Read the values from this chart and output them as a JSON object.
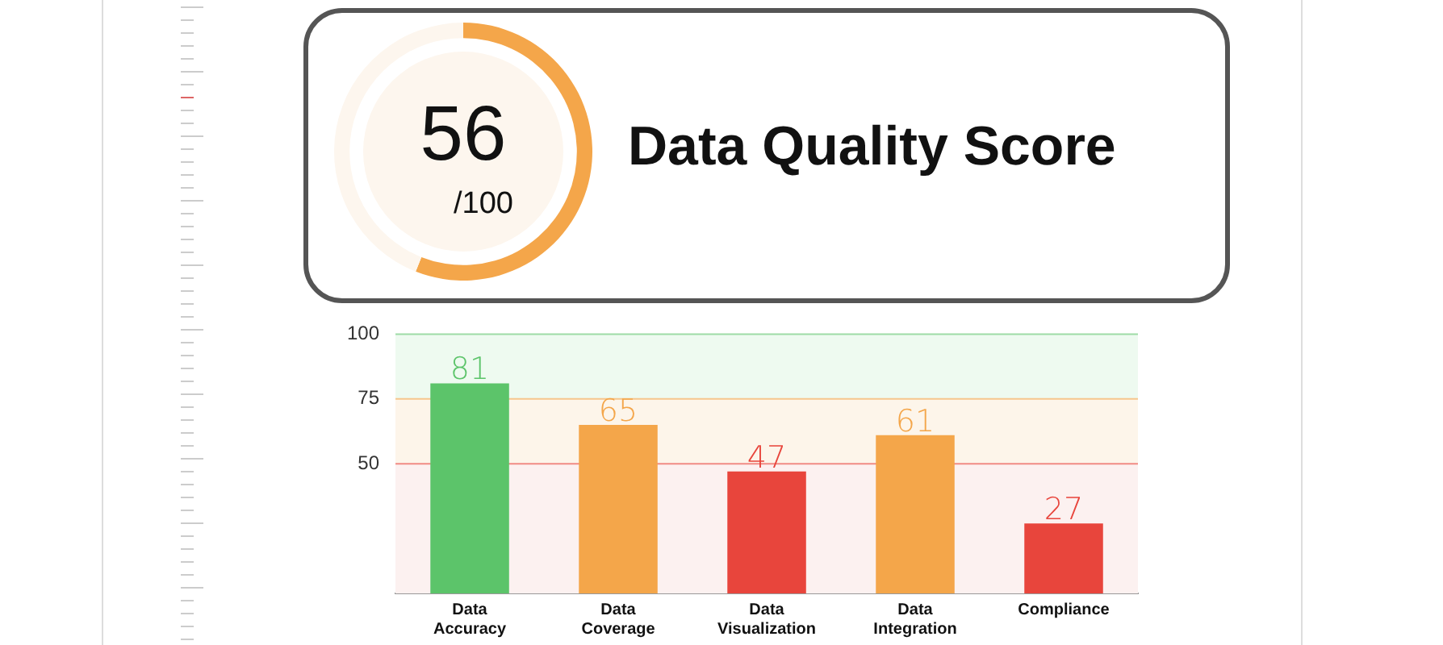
{
  "chart_data": [
    {
      "type": "donut",
      "title": "Data Quality Score",
      "categories": [
        null,
        null
      ],
      "values": [
        56,
        44
      ],
      "colors": [
        "#f4a64a",
        "#fdf6ee"
      ],
      "annotations": [
        "56",
        "/100"
      ],
      "legend": false
    },
    {
      "type": "bar",
      "categories": [
        "Data Accuracy",
        "Data Coverage",
        "Data Visualization",
        "Data Integration",
        "Compliance"
      ],
      "values": [
        81,
        65,
        47,
        61,
        27
      ],
      "colors": [
        "#5cc46a",
        "#f4a64a",
        "#e8453c",
        "#f4a64a",
        "#e8453c"
      ],
      "ylim": [
        0,
        100
      ],
      "yticks": [
        50,
        75,
        100
      ],
      "data_labels": true,
      "grid": false,
      "legend": false,
      "bands": [
        {
          "axis": "y",
          "from": 0,
          "to": 50,
          "color": "#fcf1f0"
        },
        {
          "axis": "y",
          "from": 50,
          "to": 75,
          "color": "#fdf5ea"
        },
        {
          "axis": "y",
          "from": 75,
          "to": 100,
          "color": "#eefaf0"
        }
      ],
      "ref_lines": [
        {
          "axis": "y",
          "value": 50,
          "color": "#f08a84"
        },
        {
          "axis": "y",
          "value": 75,
          "color": "#f6c68c"
        },
        {
          "axis": "y",
          "value": 100,
          "color": "#9edba6"
        }
      ]
    }
  ]
}
